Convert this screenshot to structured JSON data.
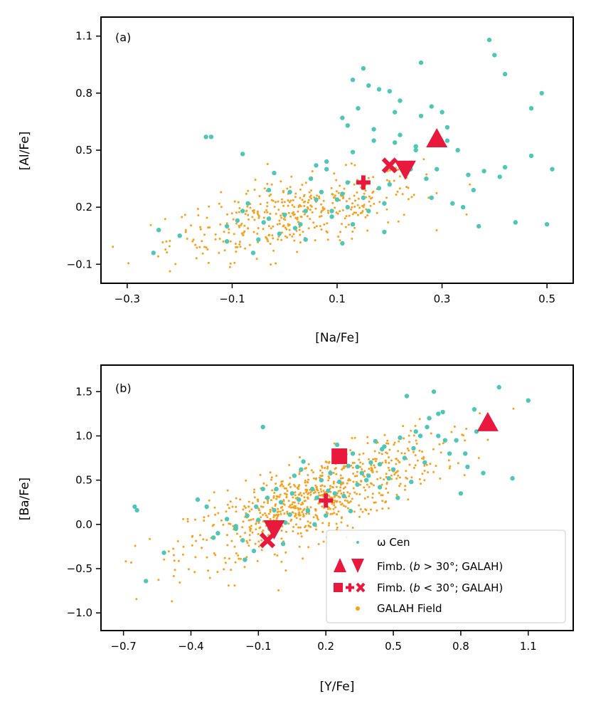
{
  "colors": {
    "omega": "#4fc7b7",
    "galah": "#f7a11d",
    "fimb": "#e8193c"
  },
  "chart_data": [
    {
      "type": "scatter",
      "panel_label": "(a)",
      "xlabel": "[Na/Fe]",
      "ylabel": "[Al/Fe]",
      "xlim": [
        -0.35,
        0.55
      ],
      "ylim": [
        -0.2,
        1.2
      ],
      "x_ticks": [
        -0.3,
        -0.1,
        0.1,
        0.3,
        0.5
      ],
      "x_tick_labels": [
        "−0.3",
        "−0.1",
        "0.1",
        "0.3",
        "0.5"
      ],
      "y_ticks": [
        -0.1,
        0.2,
        0.5,
        0.8,
        1.1
      ],
      "y_tick_labels": [
        "−0.1",
        "0.2",
        "0.5",
        "0.8",
        "1.1"
      ],
      "fimb_high_lat": [
        {
          "marker": "triangle-up",
          "x": 0.29,
          "y": 0.56
        },
        {
          "marker": "triangle-down",
          "x": 0.23,
          "y": 0.4
        }
      ],
      "fimb_low_lat": [
        {
          "marker": "plus",
          "x": 0.15,
          "y": 0.33
        },
        {
          "marker": "x",
          "x": 0.2,
          "y": 0.42
        }
      ],
      "omega_cen": {
        "x": [
          -0.24,
          -0.25,
          -0.2,
          -0.14,
          -0.11,
          -0.11,
          -0.09,
          -0.08,
          -0.08,
          -0.07,
          -0.06,
          -0.05,
          -0.04,
          -0.03,
          -0.03,
          -0.02,
          -0.01,
          0.0,
          0.01,
          0.02,
          0.03,
          0.04,
          0.04,
          0.05,
          0.06,
          0.07,
          0.08,
          0.08,
          0.09,
          0.1,
          0.11,
          0.11,
          0.12,
          0.12,
          0.13,
          0.13,
          0.14,
          0.15,
          0.16,
          0.17,
          0.17,
          0.18,
          0.19,
          0.2,
          0.21,
          0.21,
          0.22,
          0.23,
          0.24,
          0.25,
          0.26,
          0.27,
          0.28,
          0.29,
          0.3,
          0.31,
          0.32,
          0.33,
          0.34,
          0.35,
          0.36,
          0.37,
          0.38,
          0.39,
          0.4,
          0.41,
          0.42,
          0.42,
          0.44,
          0.47,
          0.47,
          0.49,
          0.5,
          0.51,
          -0.15,
          0.13,
          0.15,
          0.19,
          0.22,
          0.16,
          0.09,
          0.06,
          0.11,
          0.18,
          0.26,
          0.28,
          0.31,
          0.25,
          0.2,
          0.12
        ],
        "y": [
          0.08,
          -0.04,
          0.05,
          0.57,
          0.1,
          0.02,
          0.13,
          0.48,
          0.18,
          0.22,
          -0.04,
          0.03,
          0.12,
          0.29,
          0.14,
          0.38,
          0.06,
          0.16,
          0.28,
          0.09,
          0.11,
          0.18,
          0.03,
          0.35,
          0.24,
          0.28,
          0.4,
          0.44,
          0.18,
          0.24,
          0.01,
          0.67,
          0.33,
          0.63,
          0.49,
          0.11,
          0.72,
          0.93,
          0.84,
          0.55,
          0.61,
          0.82,
          0.22,
          0.81,
          0.7,
          0.54,
          0.76,
          0.39,
          0.4,
          0.5,
          0.96,
          0.35,
          0.25,
          0.4,
          0.7,
          0.55,
          0.22,
          0.5,
          0.2,
          0.37,
          0.29,
          0.1,
          0.39,
          1.08,
          1.0,
          0.36,
          0.41,
          0.9,
          0.12,
          0.72,
          0.47,
          0.8,
          0.11,
          0.4,
          0.57,
          0.87,
          0.25,
          0.07,
          0.58,
          0.18,
          0.15,
          0.42,
          0.27,
          0.3,
          0.68,
          0.73,
          0.62,
          0.52,
          0.32,
          0.2
        ]
      },
      "galah_field": {
        "count": 420,
        "x_mean": 0.02,
        "x_sd": 0.12,
        "slope": 0.55,
        "intercept": 0.15,
        "scatter": 0.09
      }
    },
    {
      "type": "scatter",
      "panel_label": "(b)",
      "xlabel": "[Y/Fe]",
      "ylabel": "[Ba/Fe]",
      "xlim": [
        -0.8,
        1.3
      ],
      "ylim": [
        -1.2,
        1.8
      ],
      "x_ticks": [
        -0.7,
        -0.4,
        -0.1,
        0.2,
        0.5,
        0.8,
        1.1
      ],
      "x_tick_labels": [
        "−0.7",
        "−0.4",
        "−0.1",
        "0.2",
        "0.5",
        "0.8",
        "1.1"
      ],
      "y_ticks": [
        -1.0,
        -0.5,
        0.0,
        0.5,
        1.0,
        1.5
      ],
      "y_tick_labels": [
        "−1.0",
        "−0.5",
        "0.0",
        "0.5",
        "1.0",
        "1.5"
      ],
      "fimb_high_lat": [
        {
          "marker": "triangle-up",
          "x": 0.92,
          "y": 1.15
        },
        {
          "marker": "triangle-down",
          "x": -0.03,
          "y": -0.05
        }
      ],
      "fimb_low_lat": [
        {
          "marker": "square",
          "x": 0.26,
          "y": 0.77
        },
        {
          "marker": "plus",
          "x": 0.2,
          "y": 0.27
        },
        {
          "marker": "x",
          "x": -0.06,
          "y": -0.18
        }
      ],
      "omega_cen": {
        "x": [
          -0.65,
          -0.64,
          -0.6,
          -0.52,
          -0.37,
          -0.33,
          -0.28,
          -0.24,
          -0.2,
          -0.17,
          -0.15,
          -0.12,
          -0.1,
          -0.08,
          -0.06,
          -0.05,
          -0.03,
          -0.02,
          0.0,
          0.02,
          0.04,
          0.06,
          0.08,
          0.1,
          0.12,
          0.14,
          0.16,
          0.18,
          0.2,
          0.22,
          0.24,
          0.26,
          0.28,
          0.3,
          0.32,
          0.34,
          0.36,
          0.38,
          0.4,
          0.42,
          0.44,
          0.46,
          0.48,
          0.5,
          0.53,
          0.56,
          0.59,
          0.62,
          0.65,
          0.68,
          0.7,
          0.72,
          0.75,
          0.78,
          0.8,
          0.83,
          0.86,
          0.9,
          0.97,
          1.03,
          1.1,
          -0.2,
          -0.11,
          -0.08,
          0.01,
          0.05,
          0.12,
          0.25,
          0.34,
          0.44,
          0.55,
          0.58,
          0.66,
          0.73,
          0.82,
          0.87,
          0.64,
          0.52,
          0.39,
          0.15,
          -0.3,
          -0.16,
          0.09,
          0.21,
          0.31,
          0.45,
          0.6,
          0.7
        ],
        "y": [
          0.2,
          0.16,
          -0.64,
          -0.32,
          0.28,
          0.2,
          -0.1,
          0.06,
          -0.02,
          -0.18,
          0.1,
          -0.3,
          0.05,
          1.1,
          0.3,
          -0.05,
          0.16,
          0.4,
          0.25,
          0.02,
          0.11,
          0.55,
          0.28,
          0.71,
          0.16,
          0.4,
          0.3,
          0.5,
          0.1,
          0.58,
          0.35,
          0.48,
          0.32,
          0.66,
          0.8,
          0.45,
          0.58,
          0.5,
          0.7,
          0.94,
          0.68,
          0.88,
          0.52,
          0.62,
          0.98,
          1.45,
          0.86,
          1.0,
          1.1,
          1.5,
          1.0,
          1.27,
          0.8,
          0.95,
          0.35,
          0.65,
          1.3,
          0.58,
          1.55,
          0.52,
          1.4,
          -0.05,
          0.2,
          0.4,
          -0.22,
          0.35,
          0.15,
          0.9,
          0.65,
          0.42,
          0.75,
          0.48,
          1.2,
          0.95,
          0.8,
          1.05,
          0.7,
          0.3,
          0.55,
          0.0,
          -0.15,
          -0.4,
          0.62,
          0.38,
          0.15,
          0.85,
          1.05,
          1.25
        ]
      },
      "galah_field": {
        "count": 780,
        "x_mean": 0.15,
        "x_sd": 0.28,
        "slope": 0.95,
        "intercept": 0.15,
        "scatter": 0.22
      }
    }
  ],
  "legend": {
    "omega_label": "ω Cen",
    "fimb_high_prefix": "Fimb. (",
    "fimb_high_b": "b",
    "fimb_high_suffix": " > 30°; GALAH)",
    "fimb_low_prefix": "Fimb. (",
    "fimb_low_b": "b",
    "fimb_low_suffix": " < 30°; GALAH)",
    "galah_label": "GALAH Field"
  }
}
